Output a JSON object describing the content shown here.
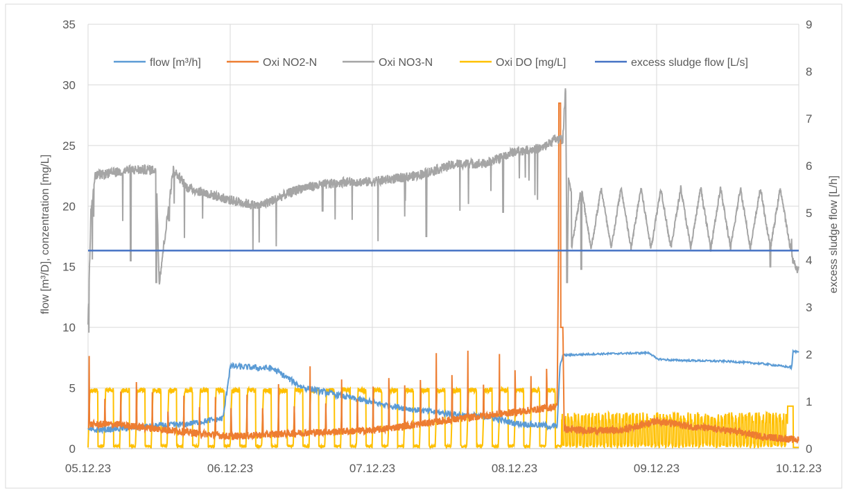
{
  "chart_data": {
    "type": "line",
    "title": "",
    "xlabel": "",
    "ylabel": "flow [m³/D], conzentration [mg/L]",
    "y2label": "excess sludge flow [L/h]",
    "x_ticks": [
      "05.12.23",
      "06.12.23",
      "07.12.23",
      "08.12.23",
      "09.12.23",
      "10.12.23"
    ],
    "xlim": [
      "05.12.23 00:00",
      "10.12.23 00:00"
    ],
    "ylim": [
      0,
      35
    ],
    "y_ticks": [
      0,
      5,
      10,
      15,
      20,
      25,
      30,
      35
    ],
    "y2lim": [
      0,
      9
    ],
    "y2_ticks": [
      0,
      1,
      2,
      3,
      4,
      5,
      6,
      7,
      8,
      9
    ],
    "grid": true,
    "legend_position": "top",
    "colors": {
      "flow": "#5B9BD5",
      "no2": "#ED7D31",
      "no3": "#A5A5A5",
      "do": "#FFC000",
      "sludge": "#4472C4"
    },
    "series": [
      {
        "name": "flow [m³/h]",
        "axis": "left",
        "x_days": [
          0.0,
          0.3,
          0.5,
          0.68,
          0.95,
          1.0,
          1.3,
          1.5,
          1.8,
          2.0,
          2.3,
          2.6,
          2.82,
          2.93,
          3.0,
          3.2,
          3.3,
          3.32,
          3.34,
          3.55,
          3.95,
          4.0,
          4.1,
          4.5,
          4.75,
          4.95,
          4.96,
          5.0
        ],
        "values": [
          1.5,
          1.7,
          1.9,
          2.0,
          2.5,
          6.8,
          6.6,
          5.1,
          4.3,
          3.8,
          3.2,
          2.8,
          2.6,
          2.3,
          2.1,
          1.9,
          1.8,
          6.8,
          7.7,
          7.8,
          7.9,
          7.4,
          7.3,
          7.2,
          7.0,
          6.7,
          8.0,
          8.0
        ]
      },
      {
        "name": "Oxi NO2-N",
        "axis": "left",
        "x_days": [
          0.0,
          0.2,
          0.5,
          1.0,
          1.5,
          2.0,
          2.5,
          3.0,
          3.2,
          3.3,
          3.32,
          3.35,
          3.5,
          3.75,
          4.0,
          4.25,
          4.5,
          4.75,
          5.0
        ],
        "values": [
          2.0,
          2.0,
          1.6,
          1.0,
          1.3,
          1.5,
          2.3,
          3.0,
          3.3,
          3.5,
          28.5,
          1.6,
          1.5,
          1.5,
          2.3,
          1.8,
          1.5,
          1.0,
          0.7
        ],
        "peak_values": [
          8.3,
          5.2,
          5.0,
          7.4,
          5.0,
          4.0,
          4.7,
          4.5,
          4.6,
          4.5,
          4.8,
          4.5,
          5.8,
          4.8,
          7.4,
          5.0,
          6.2,
          5.5,
          5.5,
          8.0,
          5.6,
          7.6,
          8.5,
          8.0,
          8.7,
          6.6,
          8.4,
          8.2,
          6.3
        ]
      },
      {
        "name": "Oxi NO3-N",
        "axis": "left",
        "x_days": [
          0.0,
          0.02,
          0.05,
          0.3,
          0.48,
          0.5,
          0.6,
          0.7,
          1.0,
          1.2,
          1.5,
          1.8,
          2.0,
          2.3,
          2.6,
          2.8,
          3.0,
          3.2,
          3.28,
          3.34,
          3.36,
          3.37,
          3.38,
          3.42,
          3.6,
          3.8,
          4.0,
          4.2,
          4.4,
          4.6,
          4.8,
          4.9,
          5.0
        ],
        "values": [
          10.5,
          19.5,
          22.5,
          23.0,
          23.0,
          13.7,
          23.0,
          21.5,
          20.5,
          20.0,
          21.5,
          22.0,
          22.0,
          22.5,
          23.5,
          23.5,
          24.5,
          24.8,
          25.5,
          25.5,
          29.8,
          13.7,
          22.0,
          21.0,
          20.0,
          21.5,
          22.0,
          20.0,
          21.0,
          20.0,
          21.0,
          16.8,
          14.6
        ],
        "dips": [
          [
            0.3,
            15.5
          ],
          [
            0.48,
            13.7
          ],
          [
            0.57,
            18.8
          ],
          [
            1.65,
            19.6
          ],
          [
            2.38,
            17.5
          ],
          [
            2.92,
            19.5
          ],
          [
            3.37,
            13.7
          ],
          [
            3.47,
            14.8
          ],
          [
            4.8,
            15.0
          ]
        ]
      },
      {
        "name": "Oxi DO [mg/L]",
        "axis": "left",
        "x_days": [
          0.0,
          3.32,
          3.35,
          5.0
        ],
        "cycle_min": 0.1,
        "cycle_max": 5.0,
        "values": [
          0.1,
          5.0,
          0.1,
          3.5
        ],
        "noisy_range_after_3_35": [
          0.0,
          3.0
        ]
      },
      {
        "name": "excess sludge flow [L/s]",
        "axis": "right",
        "x_days": [
          0.0,
          5.0
        ],
        "values": [
          4.2,
          4.2
        ]
      }
    ]
  }
}
